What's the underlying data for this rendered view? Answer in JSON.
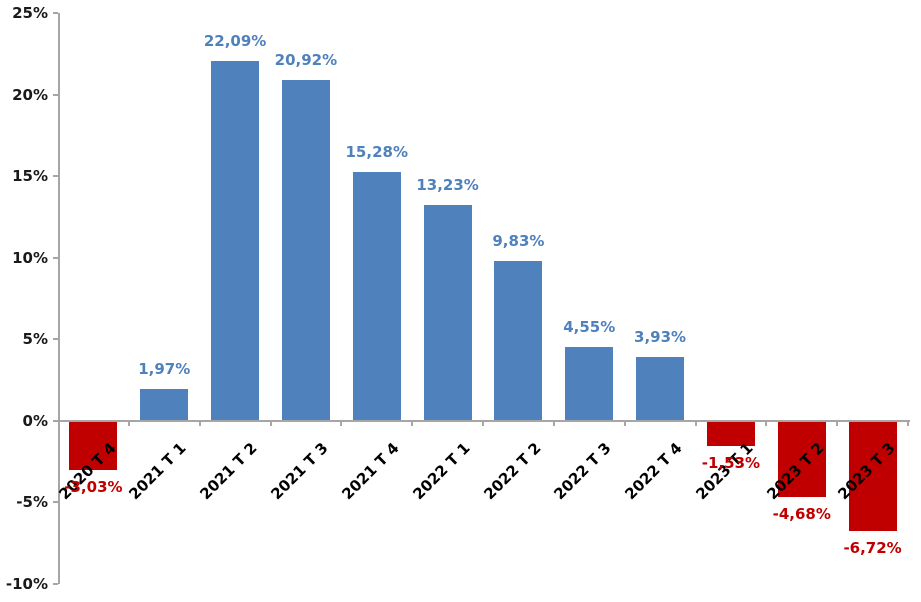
{
  "chart_data": {
    "type": "bar",
    "title": "",
    "xlabel": "",
    "ylabel": "",
    "categories": [
      "2020 T 4",
      "2021 T 1",
      "2021 T 2",
      "2021 T 3",
      "2021 T 4",
      "2022 T 1",
      "2022 T 2",
      "2022 T 3",
      "2022 T 4",
      "2023 T 1",
      "2023 T 2",
      "2023 T 3"
    ],
    "values": [
      -3.03,
      1.97,
      22.09,
      20.92,
      15.28,
      13.23,
      9.83,
      4.55,
      3.93,
      -1.53,
      -4.68,
      -6.72
    ],
    "value_labels": [
      "-3,03%",
      "1,97%",
      "22,09%",
      "20,92%",
      "15,28%",
      "13,23%",
      "9,83%",
      "4,55%",
      "3,93%",
      "-1,53%",
      "-4,68%",
      "-6,72%"
    ],
    "ylim": [
      -10,
      25
    ],
    "yticks": [
      25,
      20,
      15,
      10,
      5,
      0,
      -5,
      -10
    ],
    "ytick_labels": [
      "25%",
      "20%",
      "15%",
      "10%",
      "5%",
      "0%",
      "-5%",
      "-10%"
    ],
    "grid": false,
    "legend": false,
    "decimal_separator": ",",
    "label_position": "outside-end",
    "category_label_rotation_deg": 45,
    "colors": {
      "positive_bar": "#4F81BD",
      "negative_bar": "#C00000",
      "positive_label": "#4F81BD",
      "negative_label": "#C00000",
      "axis_line": "#A6A6A6",
      "tick_label": "#1A1A1A",
      "category_label": "#000000",
      "background": "#FFFFFF"
    }
  }
}
